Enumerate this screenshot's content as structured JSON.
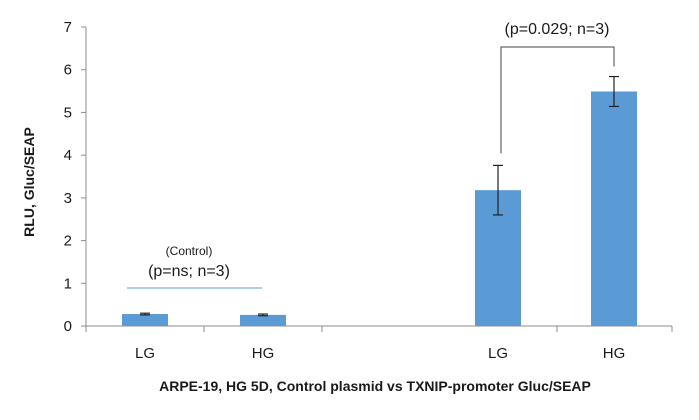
{
  "chart_data": {
    "type": "bar",
    "categories": [
      "LG",
      "HG",
      "LG",
      "HG"
    ],
    "values": [
      0.28,
      0.26,
      3.18,
      5.49
    ],
    "errors": [
      0.02,
      0.02,
      0.58,
      0.35
    ],
    "bar_color": "#5b9bd5",
    "xlabel": "ARPE-19, HG 5D, Control plasmid vs TXNIP-promoter Gluc/SEAP",
    "ylabel": "RLU, Gluc/SEAP",
    "ylim": [
      0,
      7
    ],
    "yticks": [
      0,
      1,
      2,
      3,
      4,
      5,
      6,
      7
    ],
    "grid": false,
    "legend": "none",
    "annotations": [
      {
        "label": "(Control)",
        "text": "(p=ns; n=3)",
        "groups": [
          0,
          1
        ]
      },
      {
        "text": "(p=0.029; n=3)",
        "groups": [
          2,
          3
        ]
      }
    ]
  }
}
